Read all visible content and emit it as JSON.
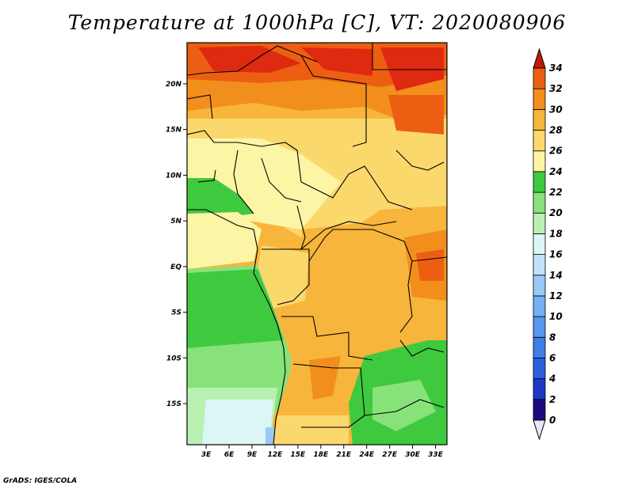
{
  "title": "Temperature at 1000hPa [C], VT: 2020080906",
  "credit": "GrADS: IGES/COLA",
  "map": {
    "lat_labels": [
      "20N",
      "15N",
      "10N",
      "5N",
      "EQ",
      "5S",
      "10S",
      "15S"
    ],
    "lat_values": [
      20,
      15,
      10,
      5,
      0,
      -5,
      -10,
      -15
    ],
    "lon_labels": [
      "3E",
      "6E",
      "9E",
      "12E",
      "15E",
      "18E",
      "21E",
      "24E",
      "27E",
      "30E",
      "33E"
    ],
    "lon_values": [
      3,
      6,
      9,
      12,
      15,
      18,
      21,
      24,
      27,
      30,
      33
    ],
    "lat_range": [
      -19.5,
      24.5
    ],
    "lon_range": [
      0.5,
      34.5
    ]
  },
  "colorbar": {
    "labels": [
      "0",
      "2",
      "4",
      "6",
      "8",
      "10",
      "12",
      "14",
      "16",
      "18",
      "20",
      "22",
      "24",
      "26",
      "28",
      "30",
      "32",
      "34"
    ],
    "colors": [
      "#1a0a80",
      "#1c39c8",
      "#2a5fe0",
      "#3d7fe8",
      "#5797ee",
      "#74aff2",
      "#99c9f5",
      "#c0e2f8",
      "#dcf5f5",
      "#b9f1b3",
      "#88e27a",
      "#3fc93f",
      "#fcf5a6",
      "#fbd86c",
      "#f7b53b",
      "#f28f1c",
      "#ec5f12",
      "#dd2a10",
      "#c01a0c"
    ],
    "under_color": "#e6e6fa"
  }
}
